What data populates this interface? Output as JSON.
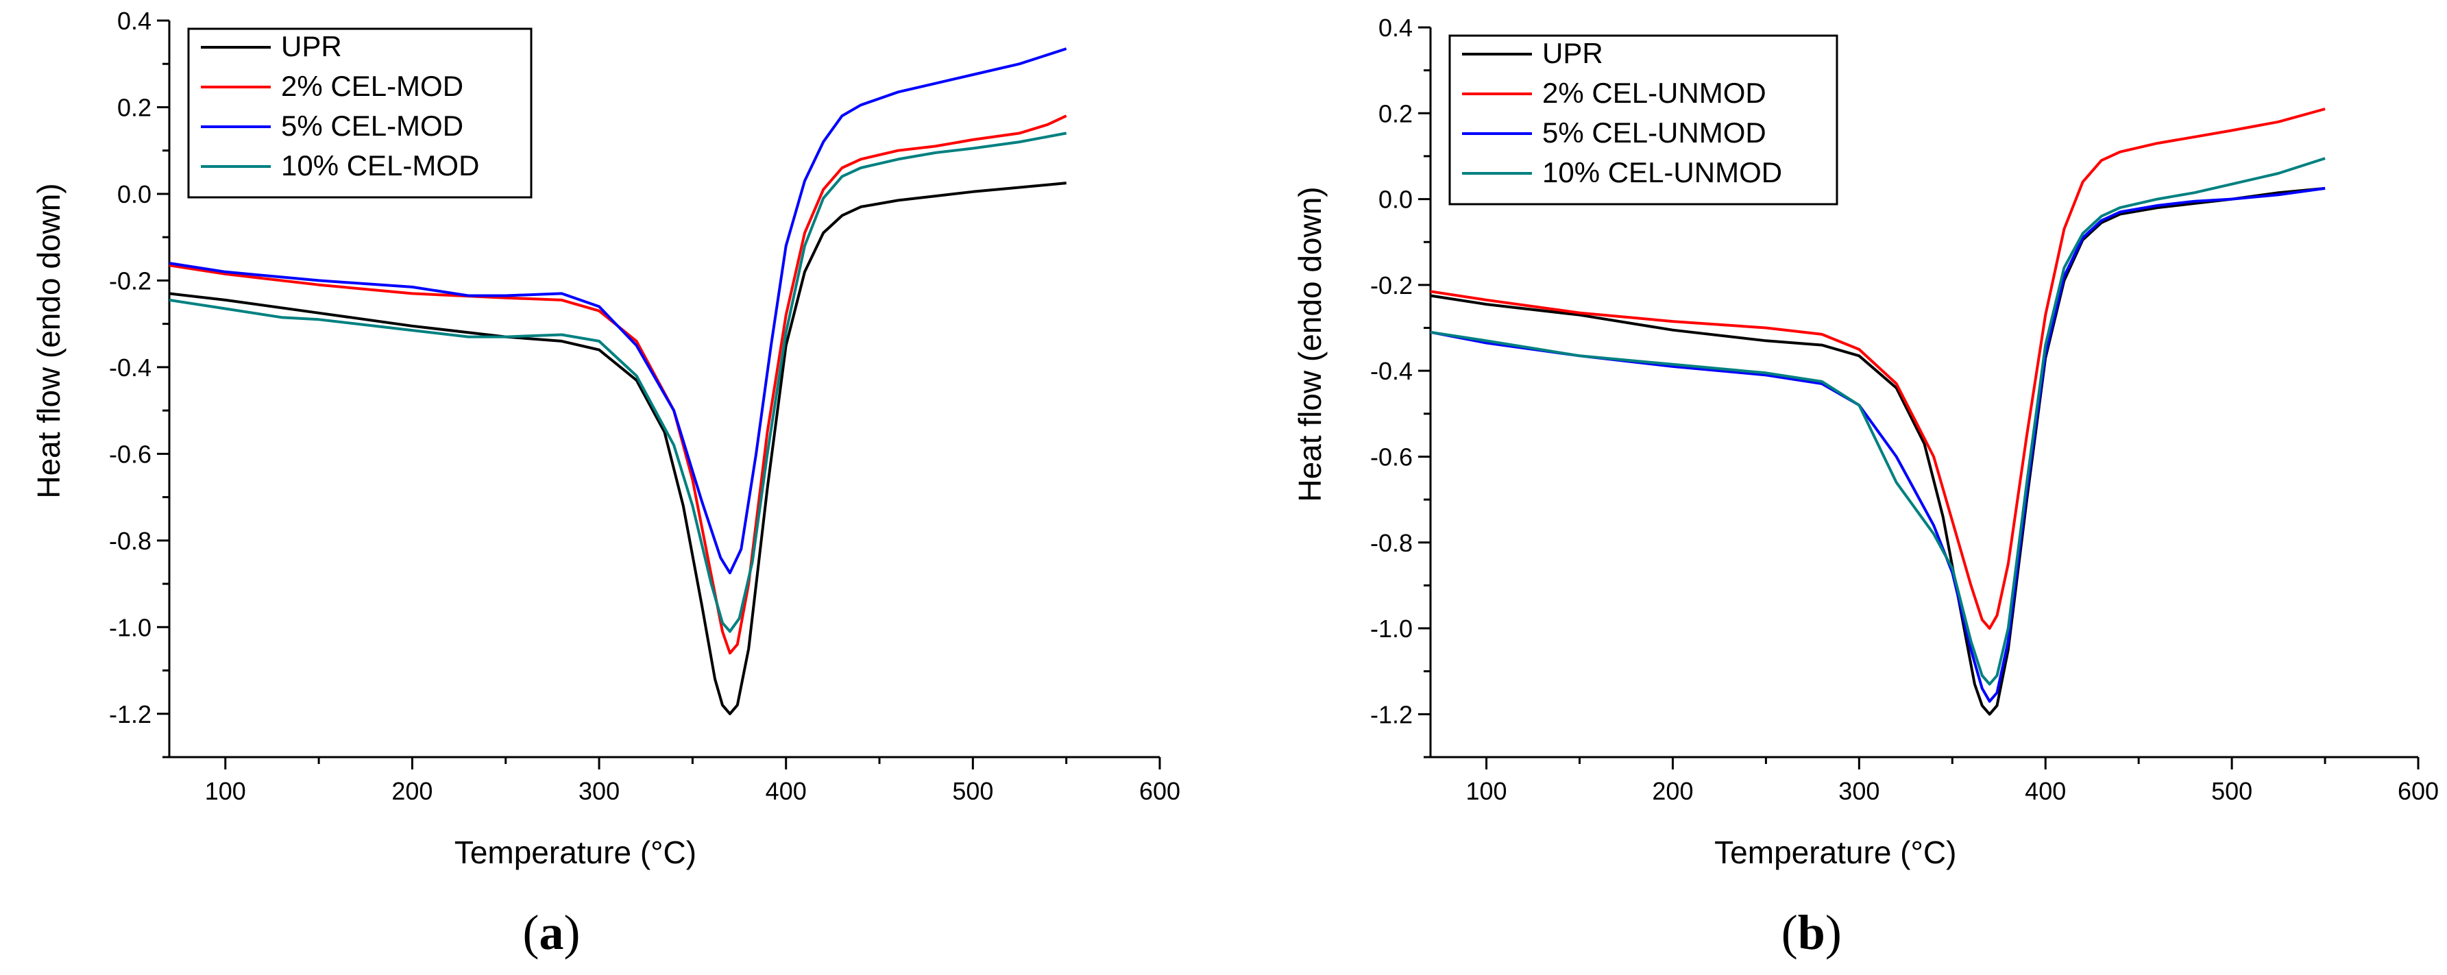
{
  "chart_data": [
    {
      "type": "line",
      "panel_label": "a",
      "xlabel": "Temperature (°C)",
      "ylabel": "Heat flow (endo down)",
      "xlim": [
        70,
        600
      ],
      "ylim": [
        -1.3,
        0.4
      ],
      "xticks": [
        100,
        200,
        300,
        400,
        500,
        600
      ],
      "xtick_labels": [
        "100",
        "200",
        "300",
        "400",
        "500",
        "600"
      ],
      "yticks": [
        0.4,
        0.2,
        0.0,
        -0.2,
        -0.4,
        -0.6,
        -0.8,
        -1.0,
        -1.2
      ],
      "ytick_labels": [
        "0.4",
        "0.2",
        "0.0",
        "-0.2",
        "-0.4",
        "-0.6",
        "-0.8",
        "-1.0",
        "-1.2"
      ],
      "legend_position": "top-left",
      "grid": false,
      "series": [
        {
          "name": "UPR",
          "color": "#000000",
          "x": [
            70,
            100,
            150,
            200,
            250,
            280,
            300,
            320,
            335,
            345,
            355,
            362,
            366,
            370,
            374,
            380,
            390,
            400,
            410,
            420,
            430,
            440,
            460,
            480,
            500,
            525,
            550
          ],
          "y": [
            -0.23,
            -0.245,
            -0.275,
            -0.305,
            -0.33,
            -0.34,
            -0.36,
            -0.43,
            -0.55,
            -0.72,
            -0.95,
            -1.12,
            -1.18,
            -1.2,
            -1.18,
            -1.05,
            -0.68,
            -0.35,
            -0.18,
            -0.09,
            -0.05,
            -0.03,
            -0.015,
            -0.005,
            0.005,
            0.015,
            0.025
          ]
        },
        {
          "name": "2% CEL-MOD",
          "color": "#ff0000",
          "x": [
            70,
            100,
            150,
            200,
            250,
            280,
            300,
            320,
            340,
            350,
            360,
            366,
            370,
            374,
            380,
            390,
            400,
            410,
            420,
            430,
            440,
            460,
            480,
            500,
            525,
            540,
            550
          ],
          "y": [
            -0.165,
            -0.185,
            -0.21,
            -0.23,
            -0.24,
            -0.245,
            -0.27,
            -0.34,
            -0.5,
            -0.66,
            -0.88,
            -1.01,
            -1.06,
            -1.04,
            -0.9,
            -0.55,
            -0.28,
            -0.09,
            0.01,
            0.06,
            0.08,
            0.1,
            0.11,
            0.125,
            0.14,
            0.16,
            0.18
          ]
        },
        {
          "name": "5% CEL-MOD",
          "color": "#0000ff",
          "x": [
            70,
            100,
            150,
            200,
            230,
            250,
            280,
            300,
            320,
            340,
            355,
            365,
            370,
            376,
            384,
            392,
            400,
            410,
            420,
            430,
            440,
            460,
            480,
            500,
            525,
            550
          ],
          "y": [
            -0.16,
            -0.18,
            -0.2,
            -0.215,
            -0.235,
            -0.235,
            -0.23,
            -0.26,
            -0.35,
            -0.5,
            -0.71,
            -0.84,
            -0.875,
            -0.82,
            -0.6,
            -0.35,
            -0.12,
            0.03,
            0.12,
            0.18,
            0.205,
            0.235,
            0.255,
            0.275,
            0.3,
            0.335
          ]
        },
        {
          "name": "10% CEL-MOD",
          "color": "#008080",
          "x": [
            70,
            100,
            130,
            150,
            200,
            230,
            250,
            280,
            300,
            320,
            340,
            350,
            360,
            366,
            370,
            375,
            382,
            390,
            400,
            410,
            420,
            430,
            440,
            460,
            480,
            500,
            525,
            550
          ],
          "y": [
            -0.245,
            -0.265,
            -0.285,
            -0.29,
            -0.315,
            -0.33,
            -0.33,
            -0.325,
            -0.34,
            -0.42,
            -0.58,
            -0.72,
            -0.9,
            -0.99,
            -1.01,
            -0.98,
            -0.85,
            -0.6,
            -0.32,
            -0.12,
            -0.01,
            0.04,
            0.06,
            0.08,
            0.095,
            0.105,
            0.12,
            0.14
          ]
        }
      ]
    },
    {
      "type": "line",
      "panel_label": "b",
      "xlabel": "Temperature (°C)",
      "ylabel": "Heat flow (endo down)",
      "xlim": [
        70,
        600
      ],
      "ylim": [
        -1.3,
        0.4
      ],
      "xticks": [
        100,
        200,
        300,
        400,
        500,
        600
      ],
      "xtick_labels": [
        "100",
        "200",
        "300",
        "400",
        "500",
        "600"
      ],
      "yticks": [
        0.4,
        0.2,
        0.0,
        -0.2,
        -0.4,
        -0.6,
        -0.8,
        -1.0,
        -1.2
      ],
      "ytick_labels": [
        "0.4",
        "0.2",
        "0.0",
        "-0.2",
        "-0.4",
        "-0.6",
        "-0.8",
        "-1.0",
        "-1.2"
      ],
      "legend_position": "top-left",
      "grid": false,
      "series": [
        {
          "name": "UPR",
          "color": "#000000",
          "x": [
            70,
            100,
            150,
            200,
            250,
            280,
            300,
            320,
            335,
            345,
            355,
            362,
            366,
            370,
            374,
            380,
            390,
            400,
            410,
            420,
            430,
            440,
            460,
            480,
            500,
            525,
            550
          ],
          "y": [
            -0.225,
            -0.245,
            -0.27,
            -0.305,
            -0.33,
            -0.34,
            -0.365,
            -0.44,
            -0.57,
            -0.74,
            -0.97,
            -1.13,
            -1.18,
            -1.2,
            -1.18,
            -1.05,
            -0.7,
            -0.37,
            -0.19,
            -0.095,
            -0.055,
            -0.035,
            -0.02,
            -0.01,
            0.0,
            0.015,
            0.025
          ]
        },
        {
          "name": "2% CEL-UNMOD",
          "color": "#ff0000",
          "x": [
            70,
            100,
            150,
            200,
            250,
            280,
            300,
            320,
            340,
            350,
            360,
            366,
            370,
            374,
            380,
            390,
            400,
            410,
            420,
            430,
            440,
            460,
            480,
            500,
            525,
            550
          ],
          "y": [
            -0.215,
            -0.235,
            -0.265,
            -0.285,
            -0.3,
            -0.315,
            -0.35,
            -0.43,
            -0.6,
            -0.75,
            -0.9,
            -0.98,
            -1.0,
            -0.97,
            -0.85,
            -0.55,
            -0.27,
            -0.07,
            0.04,
            0.09,
            0.11,
            0.13,
            0.145,
            0.16,
            0.18,
            0.21
          ]
        },
        {
          "name": "5% CEL-UNMOD",
          "color": "#0000ff",
          "x": [
            70,
            100,
            150,
            200,
            250,
            280,
            300,
            320,
            340,
            350,
            360,
            366,
            370,
            374,
            380,
            390,
            400,
            410,
            420,
            430,
            440,
            460,
            480,
            500,
            525,
            550
          ],
          "y": [
            -0.31,
            -0.335,
            -0.365,
            -0.39,
            -0.41,
            -0.43,
            -0.48,
            -0.6,
            -0.76,
            -0.87,
            -1.05,
            -1.14,
            -1.17,
            -1.15,
            -1.03,
            -0.68,
            -0.36,
            -0.18,
            -0.09,
            -0.05,
            -0.03,
            -0.015,
            -0.005,
            0.0,
            0.01,
            0.025
          ]
        },
        {
          "name": "10% CEL-UNMOD",
          "color": "#008080",
          "x": [
            70,
            100,
            150,
            200,
            250,
            280,
            300,
            320,
            340,
            350,
            360,
            366,
            370,
            374,
            380,
            390,
            400,
            410,
            420,
            430,
            440,
            460,
            480,
            500,
            525,
            550
          ],
          "y": [
            -0.31,
            -0.33,
            -0.365,
            -0.385,
            -0.405,
            -0.425,
            -0.48,
            -0.66,
            -0.78,
            -0.86,
            -1.03,
            -1.11,
            -1.13,
            -1.11,
            -1.0,
            -0.66,
            -0.34,
            -0.16,
            -0.08,
            -0.04,
            -0.02,
            0.0,
            0.015,
            0.035,
            0.06,
            0.095
          ]
        }
      ]
    }
  ]
}
